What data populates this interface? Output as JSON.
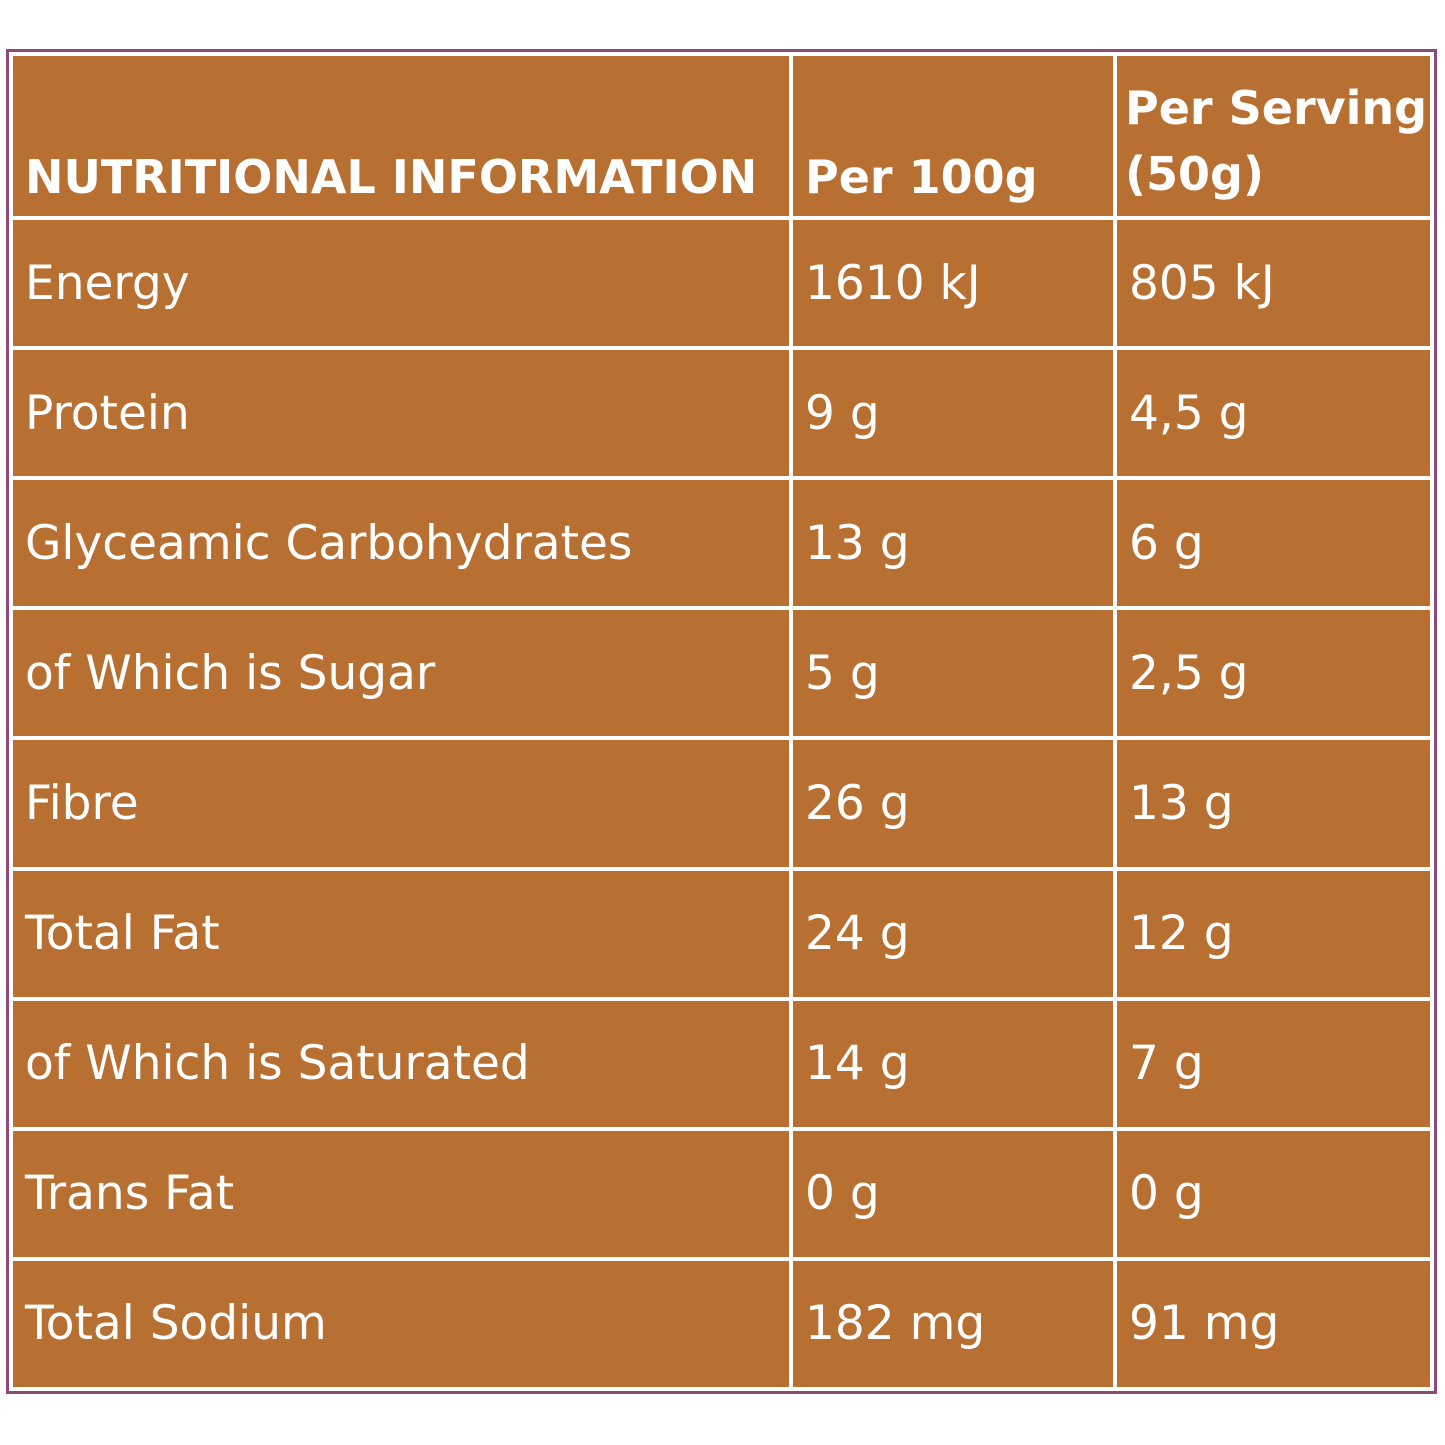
{
  "table": {
    "headers": [
      "NUTRITIONAL INFORMATION",
      "Per 100g",
      "Per Serving (50g)"
    ],
    "rows": [
      [
        "Energy",
        "1610 kJ",
        "805 kJ"
      ],
      [
        "Protein",
        "9 g",
        "4,5 g"
      ],
      [
        "Glyceamic Carbohydrates",
        "13 g",
        "6 g"
      ],
      [
        "of Which is Sugar",
        "5 g",
        "2,5 g"
      ],
      [
        "Fibre",
        "26 g",
        "13 g"
      ],
      [
        "Total Fat",
        "24 g",
        "12 g"
      ],
      [
        "of Which is Saturated",
        "14 g",
        "7 g"
      ],
      [
        "Trans Fat",
        "0 g",
        "0 g"
      ],
      [
        "Total Sodium",
        "182 mg",
        "91 mg"
      ]
    ]
  },
  "colors": {
    "cell_background": "#b86f32",
    "frame_border": "#8c4a78",
    "grid_lines": "#ffffff",
    "text": "#ffffff"
  }
}
